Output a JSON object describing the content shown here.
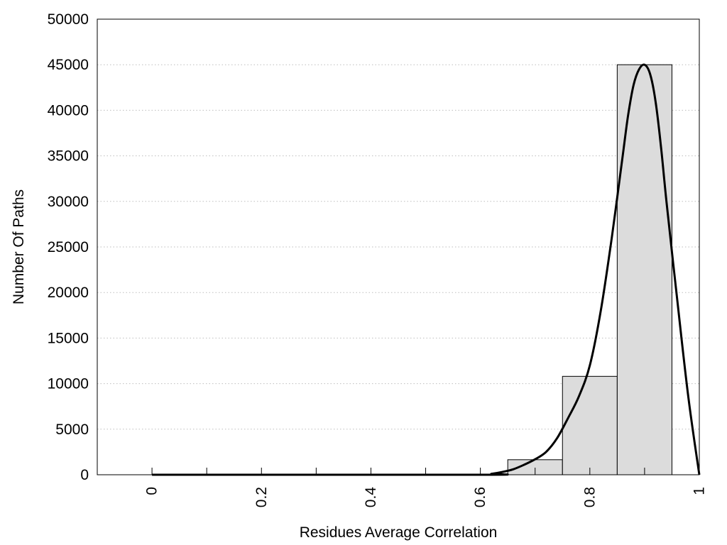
{
  "chart_data": {
    "type": "bar",
    "title": "",
    "xlabel": "Residues Average Correlation",
    "ylabel": "Number Of Paths",
    "xlim": [
      -0.1,
      1.0
    ],
    "ylim": [
      0,
      50000
    ],
    "x_ticks": [
      "0",
      "0.2",
      "0.4",
      "0.6",
      "0.8",
      "1"
    ],
    "y_ticks": [
      "0",
      "5000",
      "10000",
      "15000",
      "20000",
      "25000",
      "30000",
      "35000",
      "40000",
      "45000",
      "50000"
    ],
    "grid": "horizontal dotted",
    "legend": "none",
    "bars": [
      {
        "x0": 0.65,
        "x1": 0.75,
        "value": 1650
      },
      {
        "x0": 0.75,
        "x1": 0.85,
        "value": 10800
      },
      {
        "x0": 0.85,
        "x1": 0.95,
        "value": 45000
      }
    ],
    "curve": {
      "x": [
        0.0,
        0.6,
        0.62,
        0.64,
        0.66,
        0.68,
        0.7,
        0.72,
        0.74,
        0.76,
        0.78,
        0.8,
        0.82,
        0.84,
        0.86,
        0.87,
        0.88,
        0.89,
        0.9,
        0.91,
        0.92,
        0.93,
        0.94,
        0.96,
        0.98,
        1.0
      ],
      "y": [
        0,
        0,
        100,
        300,
        600,
        1100,
        1700,
        2500,
        4000,
        6200,
        8600,
        12000,
        18000,
        26000,
        35000,
        39500,
        42800,
        44500,
        45000,
        44000,
        41000,
        36000,
        30000,
        19000,
        8500,
        0
      ]
    },
    "colors": {
      "bar_fill": "#dcdcdc",
      "bar_stroke": "#000000",
      "curve": "#000000",
      "grid": "#bdbdbd"
    }
  }
}
